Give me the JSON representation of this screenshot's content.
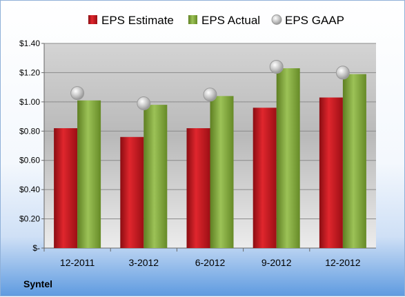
{
  "company": "Syntel",
  "colors": {
    "estimate": "#c0141b",
    "actual": "#7fa33b",
    "gaap": "#b8b8b8"
  },
  "chart_data": {
    "type": "bar",
    "categories": [
      "12-2011",
      "3-2012",
      "6-2012",
      "9-2012",
      "12-2012"
    ],
    "series": [
      {
        "name": "EPS Estimate",
        "kind": "bar",
        "values": [
          0.82,
          0.76,
          0.82,
          0.96,
          1.03
        ]
      },
      {
        "name": "EPS Actual",
        "kind": "bar",
        "values": [
          1.01,
          0.98,
          1.04,
          1.23,
          1.19
        ]
      },
      {
        "name": "EPS GAAP",
        "kind": "marker",
        "values": [
          1.06,
          0.99,
          1.05,
          1.24,
          1.2
        ]
      }
    ],
    "ylim": [
      0,
      1.4
    ],
    "yticks": [
      0,
      0.2,
      0.4,
      0.6,
      0.8,
      1.0,
      1.2,
      1.4
    ],
    "ytick_labels": [
      "$-",
      "$0.20",
      "$0.40",
      "$0.60",
      "$0.80",
      "$1.00",
      "$1.20",
      "$1.40"
    ],
    "grid": true,
    "legend": "top"
  }
}
